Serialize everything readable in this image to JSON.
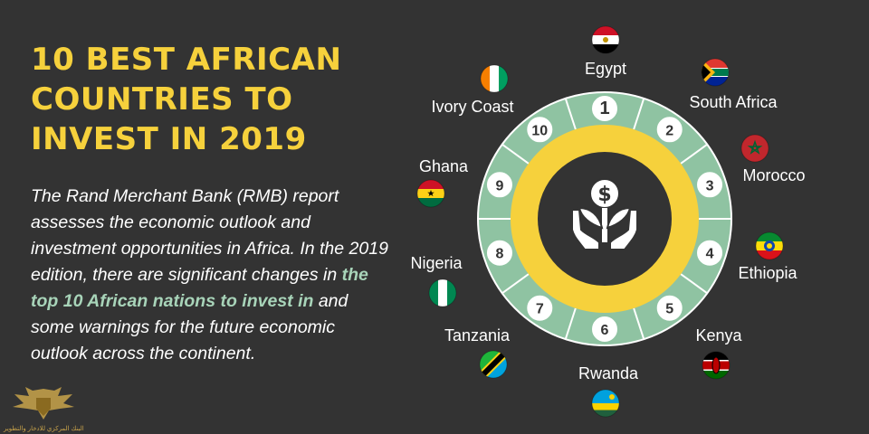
{
  "title": {
    "line1": "10 BEST AFRICAN",
    "line2": "COUNTRIES TO",
    "line3": "INVEST IN 2019"
  },
  "description": {
    "part1": "The Rand Merchant Bank (RMB) report assesses the economic outlook and investment opportunities in Africa. In the 2019 edition, there are significant changes in ",
    "highlight": "the top 10 African nations to invest in",
    "part2": " and some warnings for the future economic outlook across the continent."
  },
  "colors": {
    "background": "#333333",
    "title": "#f6d13c",
    "highlight": "#a8d4b9",
    "ring_green": "#8fc3a2",
    "ring_yellow": "#f6d13c",
    "center": "#333333"
  },
  "center_icon": "money-plant-in-hands-icon",
  "rankings": [
    {
      "rank": "1",
      "country": "Egypt",
      "flag": "egypt-flag-icon"
    },
    {
      "rank": "2",
      "country": "South Africa",
      "flag": "south-africa-flag-icon"
    },
    {
      "rank": "3",
      "country": "Morocco",
      "flag": "morocco-flag-icon"
    },
    {
      "rank": "4",
      "country": "Ethiopia",
      "flag": "ethiopia-flag-icon"
    },
    {
      "rank": "5",
      "country": "Kenya",
      "flag": "kenya-flag-icon"
    },
    {
      "rank": "6",
      "country": "Rwanda",
      "flag": "rwanda-flag-icon"
    },
    {
      "rank": "7",
      "country": "Tanzania",
      "flag": "tanzania-flag-icon"
    },
    {
      "rank": "8",
      "country": "Nigeria",
      "flag": "nigeria-flag-icon"
    },
    {
      "rank": "9",
      "country": "Ghana",
      "flag": "ghana-flag-icon"
    },
    {
      "rank": "10",
      "country": "Ivory Coast",
      "flag": "ivory-coast-flag-icon"
    }
  ],
  "watermark": {
    "logo": "eagle-shield-logo",
    "text": "البنك المركزي للادخار والتطوير"
  }
}
